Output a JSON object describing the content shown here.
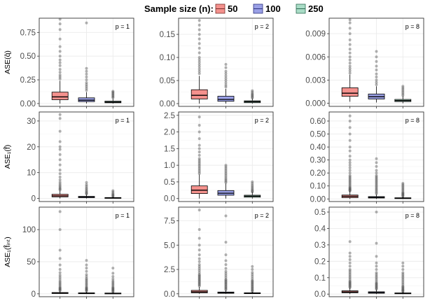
{
  "legend": {
    "title": "Sample size (n):",
    "entries": [
      {
        "label": "50",
        "fill": "#f4918d",
        "stroke": "#7a2f2c"
      },
      {
        "label": "100",
        "fill": "#9aa0e6",
        "stroke": "#2f3480"
      },
      {
        "label": "250",
        "fill": "#a9dcc6",
        "stroke": "#2e6b53"
      }
    ]
  },
  "colors": {
    "panel_border": "#333333",
    "grid_major": "#ebebeb",
    "grid_minor": "#f5f5f5",
    "outlier": "#555555",
    "whisker": "#000000"
  },
  "chart_data": [
    {
      "type": "box",
      "row": 0,
      "col": 0,
      "ylabel": "ASE(q̂)",
      "label": "p = 1",
      "ylim": [
        -0.03,
        0.9
      ],
      "ticks": [
        0,
        0.25,
        0.5,
        0.75
      ],
      "tick_labels": [
        "0.00",
        "0.25",
        "0.50",
        "0.75"
      ],
      "series": [
        {
          "name": "50",
          "q1": 0.04,
          "median": 0.07,
          "q3": 0.12,
          "whisker_low": 0.0,
          "whisker_high": 0.24,
          "outliers": [
            0.26,
            0.28,
            0.3,
            0.33,
            0.36,
            0.4,
            0.43,
            0.46,
            0.5,
            0.55,
            0.6,
            0.68,
            0.78,
            0.84,
            0.89
          ]
        },
        {
          "name": "100",
          "q1": 0.02,
          "median": 0.035,
          "q3": 0.06,
          "whisker_low": 0.0,
          "whisker_high": 0.12,
          "outliers": [
            0.14,
            0.16,
            0.18,
            0.2,
            0.22,
            0.25,
            0.28,
            0.31,
            0.34,
            0.37,
            0.85
          ]
        },
        {
          "name": "250",
          "q1": 0.008,
          "median": 0.015,
          "q3": 0.025,
          "whisker_low": 0.0,
          "whisker_high": 0.05,
          "outliers": [
            0.06,
            0.07,
            0.08,
            0.09,
            0.1,
            0.11,
            0.12,
            0.13
          ]
        }
      ]
    },
    {
      "type": "box",
      "row": 0,
      "col": 1,
      "ylabel": "",
      "label": "p = 2",
      "ylim": [
        -0.006,
        0.185
      ],
      "ticks": [
        0,
        0.05,
        0.1,
        0.15
      ],
      "tick_labels": [
        "0.00",
        "0.05",
        "0.10",
        "0.15"
      ],
      "series": [
        {
          "name": "50",
          "q1": 0.01,
          "median": 0.018,
          "q3": 0.03,
          "whisker_low": 0.0,
          "whisker_high": 0.06,
          "outliers": [
            0.065,
            0.07,
            0.075,
            0.08,
            0.085,
            0.09,
            0.095,
            0.1,
            0.11,
            0.12,
            0.13,
            0.14,
            0.15,
            0.16,
            0.17,
            0.18
          ]
        },
        {
          "name": "100",
          "q1": 0.005,
          "median": 0.009,
          "q3": 0.016,
          "whisker_low": 0.0,
          "whisker_high": 0.032,
          "outliers": [
            0.036,
            0.04,
            0.045,
            0.05,
            0.055,
            0.06,
            0.065,
            0.07,
            0.078,
            0.085
          ]
        },
        {
          "name": "250",
          "q1": 0.002,
          "median": 0.004,
          "q3": 0.006,
          "whisker_low": 0.0,
          "whisker_high": 0.011,
          "outliers": [
            0.012,
            0.014,
            0.016,
            0.018,
            0.02,
            0.022,
            0.025,
            0.028
          ]
        }
      ]
    },
    {
      "type": "box",
      "row": 0,
      "col": 2,
      "ylabel": "",
      "label": "p = 8",
      "ylim": [
        -0.0004,
        0.011
      ],
      "ticks": [
        0,
        0.003,
        0.006,
        0.009
      ],
      "tick_labels": [
        "0.000",
        "0.003",
        "0.006",
        "0.009"
      ],
      "series": [
        {
          "name": "50",
          "q1": 0.0009,
          "median": 0.0013,
          "q3": 0.002,
          "whisker_low": 0.0002,
          "whisker_high": 0.0037,
          "outliers": [
            0.0039,
            0.0042,
            0.0045,
            0.0048,
            0.0052,
            0.0056,
            0.006,
            0.0065,
            0.007,
            0.0076,
            0.0082,
            0.009,
            0.0097,
            0.0104,
            0.0108
          ]
        },
        {
          "name": "100",
          "q1": 0.00055,
          "median": 0.00085,
          "q3": 0.0012,
          "whisker_low": 0.0001,
          "whisker_high": 0.0022,
          "outliers": [
            0.0024,
            0.0027,
            0.003,
            0.0034,
            0.0038,
            0.0043,
            0.0048,
            0.0054,
            0.006,
            0.0067
          ]
        },
        {
          "name": "250",
          "q1": 0.00022,
          "median": 0.00035,
          "q3": 0.0005,
          "whisker_low": 0.0,
          "whisker_high": 0.0009,
          "outliers": [
            0.001,
            0.0012,
            0.0014,
            0.0016,
            0.0018,
            0.002,
            0.0022
          ]
        }
      ]
    },
    {
      "type": "box",
      "row": 1,
      "col": 0,
      "ylabel": "ASE₁(f̂)",
      "label": "p = 1",
      "ylim": [
        -1.2,
        33.5
      ],
      "ticks": [
        0,
        10,
        20,
        30
      ],
      "tick_labels": [
        "0",
        "10",
        "20",
        "30"
      ],
      "series": [
        {
          "name": "50",
          "q1": 0.6,
          "median": 1.0,
          "q3": 1.6,
          "whisker_low": 0.0,
          "whisker_high": 3.0,
          "outliers": [
            3.3,
            3.6,
            4.0,
            4.5,
            5.0,
            5.6,
            6.3,
            7.2,
            8.3,
            9.6,
            11,
            13,
            15,
            17,
            19,
            20,
            22,
            26,
            31,
            32.5
          ]
        },
        {
          "name": "100",
          "q1": 0.3,
          "median": 0.5,
          "q3": 0.8,
          "whisker_low": 0.0,
          "whisker_high": 1.5,
          "outliers": [
            1.7,
            2.0,
            2.3,
            2.7,
            3.1,
            3.6,
            4.1,
            4.7,
            5.3,
            6.2
          ]
        },
        {
          "name": "250",
          "q1": 0.1,
          "median": 0.2,
          "q3": 0.35,
          "whisker_low": 0.0,
          "whisker_high": 0.7,
          "outliers": [
            0.8,
            1.0,
            1.3,
            1.6,
            2.0,
            2.5,
            3.0
          ]
        }
      ]
    },
    {
      "type": "box",
      "row": 1,
      "col": 1,
      "ylabel": "",
      "label": "p = 2",
      "ylim": [
        -0.09,
        2.6
      ],
      "ticks": [
        0,
        0.5,
        1.0,
        1.5,
        2.0,
        2.5
      ],
      "tick_labels": [
        "0.0",
        "0.5",
        "1.0",
        "1.5",
        "2.0",
        "2.5"
      ],
      "series": [
        {
          "name": "50",
          "q1": 0.15,
          "median": 0.25,
          "q3": 0.38,
          "whisker_low": 0.0,
          "whisker_high": 0.72,
          "outliers": [
            0.75,
            0.8,
            0.85,
            0.9,
            0.95,
            1.0,
            1.05,
            1.1,
            1.15,
            1.2,
            1.3,
            1.4,
            1.5,
            1.6,
            1.8,
            2.0,
            2.2,
            2.45
          ]
        },
        {
          "name": "100",
          "q1": 0.1,
          "median": 0.16,
          "q3": 0.24,
          "whisker_low": 0.0,
          "whisker_high": 0.45,
          "outliers": [
            0.48,
            0.52,
            0.56,
            0.6,
            0.65,
            0.7,
            0.75,
            0.8,
            0.85,
            0.9,
            0.95,
            1.0
          ]
        },
        {
          "name": "250",
          "q1": 0.04,
          "median": 0.07,
          "q3": 0.1,
          "whisker_low": 0.0,
          "whisker_high": 0.19,
          "outliers": [
            0.2,
            0.22,
            0.25,
            0.28,
            0.32,
            0.36,
            0.4,
            0.45,
            0.5
          ]
        }
      ]
    },
    {
      "type": "box",
      "row": 1,
      "col": 2,
      "ylabel": "",
      "label": "p = 8",
      "ylim": [
        -0.02,
        0.67
      ],
      "ticks": [
        0,
        0.1,
        0.2,
        0.3,
        0.4,
        0.5,
        0.6
      ],
      "tick_labels": [
        "0.00",
        "0.10",
        "0.20",
        "0.30",
        "0.40",
        "0.50",
        "0.60"
      ],
      "series": [
        {
          "name": "50",
          "q1": 0.01,
          "median": 0.02,
          "q3": 0.03,
          "whisker_low": 0.0,
          "whisker_high": 0.06,
          "outliers": [
            0.062,
            0.066,
            0.07,
            0.075,
            0.08,
            0.085,
            0.09,
            0.1,
            0.11,
            0.12,
            0.13,
            0.14,
            0.15,
            0.16,
            0.17,
            0.18,
            0.2,
            0.22,
            0.24,
            0.26,
            0.28,
            0.3,
            0.33,
            0.37,
            0.4,
            0.45,
            0.5,
            0.55,
            0.6,
            0.64
          ]
        },
        {
          "name": "100",
          "q1": 0.007,
          "median": 0.012,
          "q3": 0.018,
          "whisker_low": 0.0,
          "whisker_high": 0.035,
          "outliers": [
            0.04,
            0.05,
            0.06,
            0.07,
            0.08,
            0.09,
            0.1,
            0.11,
            0.12,
            0.13,
            0.14,
            0.15,
            0.16,
            0.17,
            0.18,
            0.2,
            0.22,
            0.25,
            0.28,
            0.31
          ]
        },
        {
          "name": "250",
          "q1": 0.003,
          "median": 0.006,
          "q3": 0.009,
          "whisker_low": 0.0,
          "whisker_high": 0.018,
          "outliers": [
            0.02,
            0.025,
            0.03,
            0.035,
            0.04,
            0.045,
            0.05,
            0.06,
            0.07,
            0.08,
            0.09,
            0.1,
            0.11,
            0.12
          ]
        }
      ]
    },
    {
      "type": "box",
      "row": 2,
      "col": 0,
      "ylabel": "ASE₁(f̂ᵢₙₜ)",
      "label": "p = 1",
      "ylim": [
        -4.5,
        135
      ],
      "ticks": [
        0,
        50,
        100
      ],
      "tick_labels": [
        "0",
        "50",
        "100"
      ],
      "series": [
        {
          "name": "50",
          "q1": 0.5,
          "median": 1.0,
          "q3": 2.0,
          "whisker_low": 0.0,
          "whisker_high": 4.0,
          "outliers": [
            5,
            6,
            7,
            8,
            9,
            10,
            12,
            14,
            16,
            18,
            20,
            23,
            26,
            29,
            33,
            38,
            45,
            55,
            68,
            100,
            128
          ]
        },
        {
          "name": "100",
          "q1": 0.4,
          "median": 0.8,
          "q3": 1.5,
          "whisker_low": 0.0,
          "whisker_high": 3.0,
          "outliers": [
            4,
            5,
            6,
            7,
            8,
            9,
            10,
            12,
            14,
            16,
            18,
            20,
            22,
            24,
            27,
            30,
            35,
            40,
            45,
            52
          ]
        },
        {
          "name": "250",
          "q1": 0.3,
          "median": 0.6,
          "q3": 1.2,
          "whisker_low": 0.0,
          "whisker_high": 2.5,
          "outliers": [
            3,
            4,
            5,
            6,
            7,
            8,
            9,
            10,
            12,
            14,
            16,
            18,
            20,
            23,
            27,
            32,
            40
          ]
        }
      ]
    },
    {
      "type": "box",
      "row": 2,
      "col": 1,
      "ylabel": "",
      "label": "p = 2",
      "ylim": [
        -0.3,
        8.9
      ],
      "ticks": [
        0,
        2.5,
        5.0,
        7.5
      ],
      "tick_labels": [
        "0.0",
        "2.5",
        "5.0",
        "7.5"
      ],
      "series": [
        {
          "name": "50",
          "q1": 0.1,
          "median": 0.2,
          "q3": 0.35,
          "whisker_low": 0.0,
          "whisker_high": 0.7,
          "outliers": [
            0.8,
            0.9,
            1.0,
            1.1,
            1.2,
            1.3,
            1.4,
            1.5,
            1.6,
            1.7,
            1.8,
            1.9,
            2.0,
            2.2,
            2.4,
            2.6,
            2.8,
            3.0,
            3.3,
            3.6,
            4.0,
            4.5,
            5.0,
            5.7,
            6.6,
            8.6
          ]
        },
        {
          "name": "100",
          "q1": 0.05,
          "median": 0.1,
          "q3": 0.18,
          "whisker_low": 0.0,
          "whisker_high": 0.35,
          "outliers": [
            0.4,
            0.5,
            0.6,
            0.7,
            0.8,
            0.9,
            1.0,
            1.1,
            1.2,
            1.3,
            1.4,
            1.5,
            1.7,
            1.9,
            2.1,
            2.3,
            2.6,
            3.0,
            3.4,
            4.0,
            5.3,
            8.0
          ]
        },
        {
          "name": "250",
          "q1": 0.03,
          "median": 0.06,
          "q3": 0.1,
          "whisker_low": 0.0,
          "whisker_high": 0.2,
          "outliers": [
            0.25,
            0.3,
            0.4,
            0.5,
            0.6,
            0.7,
            0.8,
            0.9,
            1.0,
            1.1,
            1.2,
            1.3,
            1.4,
            1.6,
            1.8,
            2.0,
            2.2,
            2.5,
            2.8
          ]
        }
      ]
    },
    {
      "type": "box",
      "row": 2,
      "col": 2,
      "ylabel": "",
      "label": "p = 8",
      "ylim": [
        -0.016,
        0.53
      ],
      "ticks": [
        0,
        0.1,
        0.2,
        0.3,
        0.4,
        0.5
      ],
      "tick_labels": [
        "0.0",
        "0.1",
        "0.2",
        "0.3",
        "0.4",
        "0.5"
      ],
      "series": [
        {
          "name": "50",
          "q1": 0.008,
          "median": 0.013,
          "q3": 0.02,
          "whisker_low": 0.0,
          "whisker_high": 0.038,
          "outliers": [
            0.04,
            0.045,
            0.05,
            0.055,
            0.06,
            0.065,
            0.07,
            0.075,
            0.08,
            0.09,
            0.1,
            0.11,
            0.12,
            0.13,
            0.14,
            0.15,
            0.17,
            0.19,
            0.21,
            0.23,
            0.25,
            0.32
          ]
        },
        {
          "name": "100",
          "q1": 0.005,
          "median": 0.009,
          "q3": 0.014,
          "whisker_low": 0.0,
          "whisker_high": 0.027,
          "outliers": [
            0.03,
            0.035,
            0.04,
            0.045,
            0.05,
            0.055,
            0.06,
            0.065,
            0.07,
            0.08,
            0.09,
            0.1,
            0.11,
            0.12,
            0.13,
            0.15,
            0.17,
            0.19,
            0.23,
            0.31,
            0.5
          ]
        },
        {
          "name": "250",
          "q1": 0.002,
          "median": 0.004,
          "q3": 0.007,
          "whisker_low": 0.0,
          "whisker_high": 0.013,
          "outliers": [
            0.015,
            0.018,
            0.022,
            0.026,
            0.03,
            0.035,
            0.04,
            0.045,
            0.05,
            0.06,
            0.07,
            0.08,
            0.09,
            0.1,
            0.11,
            0.12,
            0.13,
            0.15,
            0.17,
            0.19
          ]
        }
      ]
    }
  ]
}
